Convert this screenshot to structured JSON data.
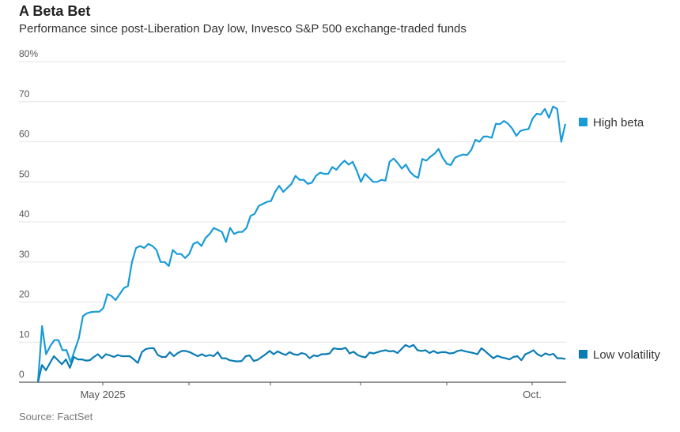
{
  "chart_data": {
    "type": "line",
    "title": "A Beta Bet",
    "subtitle": "Performance since post-Liberation Day low, Invesco S&P 500 exchange-traded funds",
    "source": "Source: FactSet",
    "xlabel": "",
    "ylabel": "",
    "ylim": [
      0,
      80
    ],
    "yticks": [
      0,
      10,
      20,
      30,
      40,
      50,
      60,
      70,
      80
    ],
    "ytick_labels": [
      "0",
      "10",
      "20",
      "30",
      "40",
      "50",
      "60",
      "70",
      "80%"
    ],
    "x_month_ticks": [
      "May 2025",
      "",
      "",
      "",
      "",
      "Oct."
    ],
    "grid": true,
    "legend": "right",
    "series": [
      {
        "name": "High beta",
        "color": "#1a9bd7",
        "values": [
          0,
          14,
          7,
          9,
          10.5,
          10.5,
          8,
          8,
          5,
          8,
          11,
          16.5,
          17.2,
          17.5,
          17.6,
          17.6,
          18.5,
          22,
          21.5,
          20.5,
          22,
          23.5,
          24,
          30,
          33.5,
          34,
          33.5,
          34.5,
          34,
          33,
          30,
          30,
          29,
          33,
          32,
          32,
          31,
          32,
          34.5,
          35,
          34,
          36,
          37,
          38.5,
          38,
          37.5,
          35,
          38.5,
          37,
          37.5,
          37.5,
          38.5,
          41.5,
          42,
          44,
          44.5,
          45,
          45.2,
          47.5,
          49,
          47.5,
          48.5,
          49.5,
          51.5,
          50.5,
          50.5,
          49.5,
          49.8,
          51.5,
          52.3,
          52,
          52,
          53.7,
          53,
          54.3,
          55.3,
          54.3,
          55,
          52.7,
          50,
          52,
          51,
          50,
          50,
          50.5,
          50.3,
          55,
          55.8,
          54.7,
          53.3,
          54.3,
          52.5,
          51.5,
          51,
          55.7,
          55.3,
          56.3,
          57,
          58.2,
          56,
          54.5,
          54.2,
          56,
          56.5,
          56.8,
          56.7,
          58,
          60.5,
          60,
          61.3,
          61.3,
          61,
          64.5,
          64.4,
          65.2,
          64.5,
          63.3,
          61.5,
          62.7,
          63,
          63.2,
          65.8,
          67,
          66.8,
          68.2,
          66,
          68.8,
          68.2,
          60,
          64.5
        ]
      },
      {
        "name": "Low volatility",
        "color": "#0a7cb5",
        "values": [
          0,
          4.3,
          3,
          4.8,
          6.5,
          5.5,
          4.5,
          5.7,
          3.6,
          6.3,
          5.7,
          5.7,
          5.4,
          5.5,
          6.3,
          7,
          6,
          7,
          6.7,
          6.3,
          6.8,
          6.5,
          6.5,
          6.5,
          5.7,
          4.8,
          7.5,
          8.3,
          8.5,
          8.5,
          6.8,
          6.3,
          6.3,
          7.5,
          6.5,
          7.3,
          7.8,
          7.8,
          7.5,
          7,
          6.5,
          7,
          6.5,
          6.8,
          6.5,
          7.5,
          6,
          6,
          5.5,
          5.3,
          5.2,
          5.3,
          6.5,
          6.7,
          5.3,
          5.6,
          6.3,
          7,
          7.8,
          7,
          7.7,
          7.2,
          6.8,
          7.5,
          7,
          6.8,
          7.3,
          7,
          6,
          6.7,
          6.5,
          7,
          7,
          7.2,
          8.5,
          8.3,
          8.3,
          8.6,
          7.2,
          7.6,
          6.8,
          6.4,
          6.2,
          7.4,
          7.2,
          7.5,
          7.8,
          8,
          7.7,
          7.8,
          7.3,
          8.3,
          9.3,
          8.8,
          9.3,
          8,
          7.8,
          8,
          7.3,
          7.8,
          7.3,
          7.5,
          7.5,
          7.2,
          7.3,
          7.8,
          8,
          7.7,
          7.5,
          7.3,
          7,
          8.5,
          7.7,
          6.8,
          6,
          6.6,
          6.2,
          6,
          5.7,
          6.3,
          6.5,
          5.5,
          7,
          7.4,
          8,
          7,
          6.5,
          7.2,
          6.8,
          7.1,
          6,
          6,
          5.8
        ]
      }
    ]
  }
}
